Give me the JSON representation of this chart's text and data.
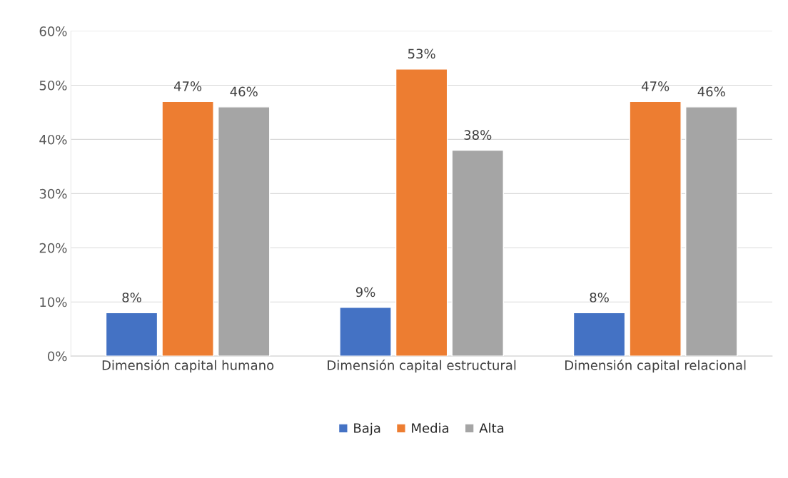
{
  "chart_data": {
    "type": "bar",
    "categories": [
      "Dimensión capital humano",
      "Dimensión capital estructural",
      "Dimensión capital relacional"
    ],
    "series": [
      {
        "name": "Baja",
        "color": "#4472c4",
        "values": [
          8,
          9,
          8
        ],
        "value_labels": [
          "8%",
          "9%",
          "8%"
        ]
      },
      {
        "name": "Media",
        "color": "#ed7d31",
        "values": [
          47,
          53,
          47
        ],
        "value_labels": [
          "47%",
          "53%",
          "47%"
        ]
      },
      {
        "name": "Alta",
        "color": "#a5a5a5",
        "values": [
          46,
          38,
          46
        ],
        "value_labels": [
          "46%",
          "38%",
          "46%"
        ]
      }
    ],
    "ylim": [
      0,
      60
    ],
    "yticks": [
      {
        "value": 0,
        "label": "0%"
      },
      {
        "value": 10,
        "label": "10%"
      },
      {
        "value": 20,
        "label": "20%"
      },
      {
        "value": 30,
        "label": "30%"
      },
      {
        "value": 40,
        "label": "40%"
      },
      {
        "value": 50,
        "label": "50%"
      },
      {
        "value": 60,
        "label": "60%"
      }
    ],
    "grid": "y",
    "legend": "bottom"
  }
}
